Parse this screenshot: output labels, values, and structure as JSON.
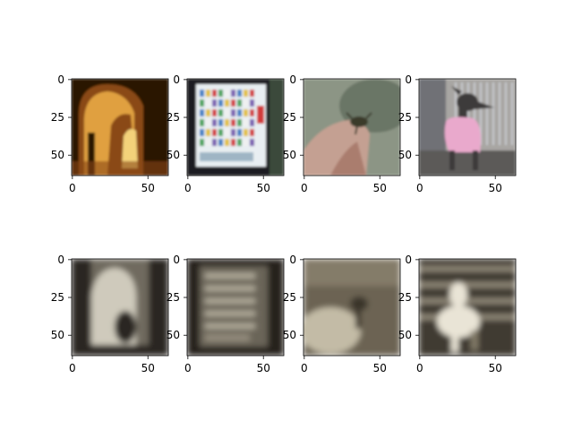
{
  "chart_data": {
    "type": "image-grid",
    "grid": {
      "rows": 2,
      "cols": 4
    },
    "image_size": [
      64,
      64
    ],
    "x_ticks": [
      0,
      50
    ],
    "y_ticks": [
      0,
      25,
      50
    ],
    "panels": [
      {
        "row": 0,
        "col": 0,
        "depicts": "arched vaulted corridor, warm candlelit orange",
        "style": "color",
        "colors": {
          "base": "#2a1204",
          "mid": "#8a4a14",
          "light": "#e0a040",
          "accent": "#f3d27a"
        }
      },
      {
        "row": 0,
        "col": 1,
        "depicts": "vending machine with rows of bottles",
        "style": "color",
        "colors": {
          "base": "#1c1f24",
          "mid": "#9fb5c4",
          "light": "#e8eef2",
          "accent": "#d23b3b"
        }
      },
      {
        "row": 0,
        "col": 2,
        "depicts": "hand holding a small crab on a rock",
        "style": "color",
        "colors": {
          "base": "#5d6a58",
          "mid": "#8c9585",
          "light": "#c4a092",
          "accent": "#9a6656"
        }
      },
      {
        "row": 0,
        "col": 3,
        "depicts": "grey dog wearing a pink shirt",
        "style": "color",
        "colors": {
          "base": "#6f7176",
          "mid": "#a8a6a3",
          "light": "#e9a9cc",
          "accent": "#3c3a3a"
        }
      },
      {
        "row": 1,
        "col": 0,
        "depicts": "blurry sepia reconstruction of corridor",
        "style": "sepia",
        "colors": {
          "base": "#2b2720",
          "mid": "#6f6a5e",
          "light": "#cfcabc",
          "accent": "#a39d8e"
        }
      },
      {
        "row": 1,
        "col": 1,
        "depicts": "blurry sepia reconstruction of vending machine",
        "style": "sepia",
        "colors": {
          "base": "#27241e",
          "mid": "#6b6558",
          "light": "#c6bfae",
          "accent": "#938b7b"
        }
      },
      {
        "row": 1,
        "col": 2,
        "depicts": "blurry sepia reconstruction of crab",
        "style": "sepia",
        "colors": {
          "base": "#6c6452",
          "mid": "#958c79",
          "light": "#c3bba6",
          "accent": "#3a342a"
        }
      },
      {
        "row": 1,
        "col": 3,
        "depicts": "blurry sepia reconstruction of dog",
        "style": "sepia",
        "colors": {
          "base": "#403b31",
          "mid": "#827a68",
          "light": "#e9e4d6",
          "accent": "#b3ab98"
        }
      }
    ]
  }
}
